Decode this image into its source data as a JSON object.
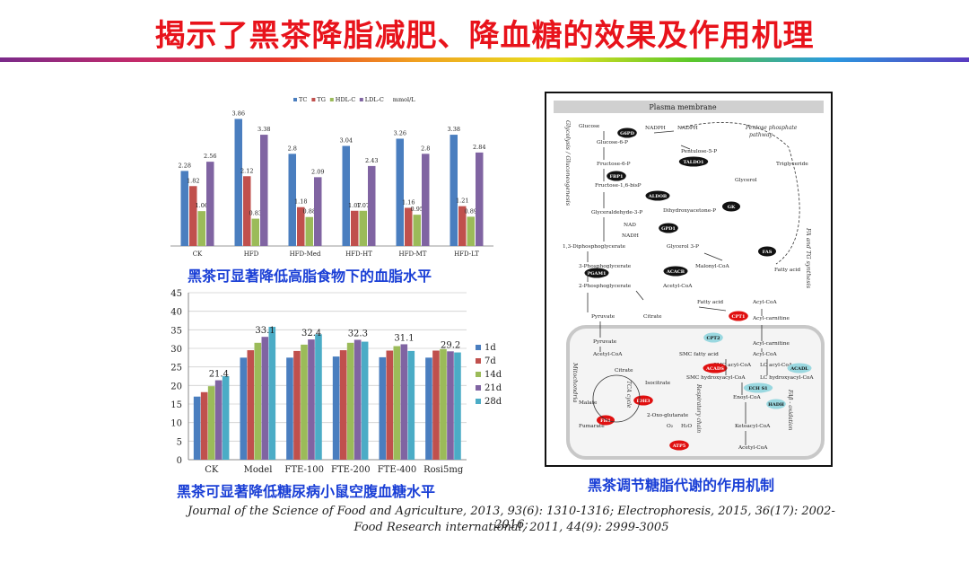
{
  "title": "揭示了黑茶降脂减肥、降血糖的效果及作用机理",
  "colors": {
    "title": "#e8131b",
    "caption": "#1a3fd6"
  },
  "chart_data": [
    {
      "type": "bar",
      "categories": [
        "CK",
        "HFD",
        "HFD-Med",
        "HFD-HT",
        "HFD-MT",
        "HFD-LT"
      ],
      "series": [
        {
          "name": "TC",
          "color": "#4a7ebf",
          "values": [
            2.28,
            3.86,
            2.8,
            3.04,
            3.26,
            3.38
          ]
        },
        {
          "name": "TG",
          "color": "#c0504d",
          "values": [
            1.82,
            2.12,
            1.18,
            1.07,
            1.16,
            1.21
          ]
        },
        {
          "name": "HDL-C",
          "color": "#9bbb59",
          "values": [
            1.06,
            0.83,
            0.88,
            1.07,
            0.95,
            0.89
          ]
        },
        {
          "name": "LDL-C",
          "color": "#8064a2",
          "values": [
            2.56,
            3.38,
            2.09,
            2.43,
            2.8,
            2.84
          ]
        }
      ],
      "unit": "mmol/L",
      "labels": [
        [
          "2.28",
          "1.82",
          "1.06",
          "2.56"
        ],
        [
          "3.86",
          "2.12",
          "0.83",
          "3.38"
        ],
        [
          "2.8",
          "1.18",
          "0.88",
          "2.09"
        ],
        [
          "3.04",
          "1.07",
          "1.07",
          "2.43"
        ],
        [
          "3.26",
          "1.16",
          "0.95",
          "2.8"
        ],
        [
          "3.38",
          "1.21",
          "0.89",
          "2.84"
        ]
      ],
      "ylim": [
        0,
        4.2
      ],
      "legend": "top",
      "caption": "黑茶可显著降低高脂食物下的血脂水平"
    },
    {
      "type": "bar",
      "categories": [
        "CK",
        "Model",
        "FTE-100",
        "FTE-200",
        "FTE-400",
        "Rosi5mg"
      ],
      "series": [
        {
          "name": "1d",
          "color": "#4a7ebf",
          "values": [
            17.0,
            27.5,
            27.5,
            27.8,
            27.6,
            27.5
          ]
        },
        {
          "name": "7d",
          "color": "#c0504d",
          "values": [
            18.2,
            29.5,
            29.3,
            29.5,
            29.4,
            29.4
          ]
        },
        {
          "name": "14d",
          "color": "#9bbb59",
          "values": [
            19.8,
            31.5,
            31.0,
            31.5,
            30.6,
            29.8
          ]
        },
        {
          "name": "21d",
          "color": "#8064a2",
          "values": [
            21.4,
            33.1,
            32.4,
            32.3,
            31.1,
            29.2
          ]
        },
        {
          "name": "28d",
          "color": "#4bacc6",
          "values": [
            22.5,
            35.8,
            33.8,
            31.8,
            29.3,
            28.9
          ]
        }
      ],
      "top_labels": [
        "21.4",
        "33.1",
        "32.4",
        "32.3",
        "31.1",
        "29.2"
      ],
      "yticks": [
        0,
        5,
        10,
        15,
        20,
        25,
        30,
        35,
        40,
        45
      ],
      "ylim": [
        0,
        45
      ],
      "grid": true,
      "legend": "right",
      "caption": "黑茶可显著降低糖尿病小鼠空腹血糖水平"
    }
  ],
  "pathway": {
    "caption": "黑茶调节糖脂代谢的作用机制",
    "membrane": "Plasma membrane",
    "pentose": [
      "Pentose phosphate",
      "pathway"
    ],
    "side_labels": {
      "left": "Glycolysis / Gluconeogenesis",
      "right": "FA and TG synthesis",
      "mito": "Mitochondria",
      "tca": "TCA cycle",
      "resp": "Respiratory chain",
      "fab": "FAβ - oxidation"
    },
    "metabolites": [
      "Glucose",
      "Glucose-6-P",
      "NADPH",
      "NADPH",
      "Pentulose-5-P",
      "Fructose-6-P",
      "Fructose-1,6-bisP",
      "Glyceraldehyde-3-P",
      "Dihydroxyacetone-P",
      "Glycerol",
      "Triglyceride",
      "NAD",
      "NADH",
      "Glycerol 3-P",
      "1,3-Diphosphoglycerate",
      "3-Phosphoglycerate",
      "Malonyl-CoA",
      "Fatty acid",
      "2-Phosphoglycerate",
      "Acetyl-CoA",
      "Fatty acid",
      "Acyl-CoA",
      "Pyruvate",
      "Citrate",
      "Acyl-carnitine",
      "Pyruvate",
      "Acyl-carnitine",
      "Acetyl-CoA",
      "SMC fatty acid",
      "Acyl-CoA",
      "Citrate",
      "SMC acyl-CoA",
      "LC acyl-CoA",
      "Isocitrate",
      "SMC hydroxyacyl-CoA",
      "LC hydroxyacyl-CoA",
      "Malate",
      "2-Oxo-glutarate",
      "Enoyl-CoA",
      "Fumarate",
      "Ketoacyl-CoA",
      "O₂",
      "H₂O",
      "Acetyl-CoA"
    ],
    "enzymes": [
      "G6PD",
      "TALDO1",
      "FBP1",
      "ALDOB",
      "GK",
      "GPD1",
      "FAS",
      "ACACB",
      "PGAM1",
      "CPT1",
      "CPT2",
      "ACADL",
      "ACADS",
      "ECH S1",
      "HADH",
      "IDH3",
      "FH1",
      "ATP5"
    ]
  },
  "refs": [
    "Journal of the Science of Food and Agriculture, 2013, 93(6): 1310-1316;  Electrophoresis, 2015, 36(17): 2002-2016;",
    "Food Research international, 2011, 44(9): 2999-3005"
  ]
}
